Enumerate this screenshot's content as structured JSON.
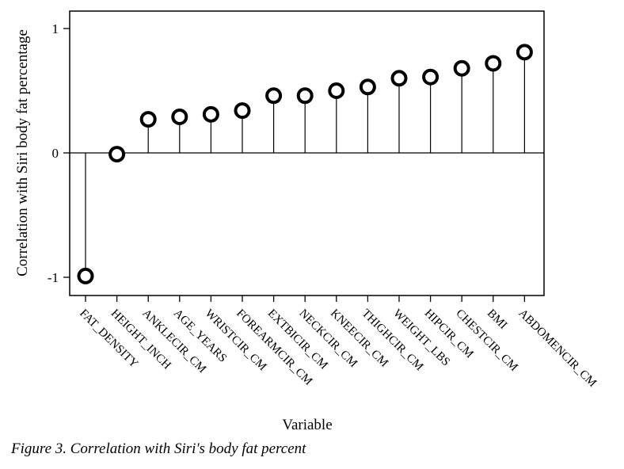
{
  "figure_caption": "Figure 3. Correlation with Siri's body fat percent",
  "chart_data": {
    "type": "scatter",
    "style": "lollipop",
    "xlabel": "Variable",
    "ylabel": "Correlation with Siri body fat percentage",
    "ylim": [
      -1.15,
      1.15
    ],
    "yticks": [
      -1,
      0,
      1
    ],
    "ytick_labels": [
      "-1",
      "0",
      "1"
    ],
    "grid": false,
    "baseline": 0,
    "marker": "open-circle",
    "categories": [
      "FAT_DENSITY",
      "HEIGHT_INCH",
      "ANKLECIR_CM",
      "AGE_YEARS",
      "WRISTCIR_CM",
      "FOREARMCIR_CM",
      "EXTBICIR_CM",
      "NECKCIR_CM",
      "KNEECIR_CM",
      "THIGHCIR_CM",
      "WEIGHT_LBS",
      "HIPCIR_CM",
      "CHESTCIR_CM",
      "BMI",
      "ABDOMENCIR_CM"
    ],
    "values": [
      -0.99,
      -0.01,
      0.27,
      0.29,
      0.31,
      0.34,
      0.46,
      0.46,
      0.5,
      0.53,
      0.6,
      0.61,
      0.68,
      0.72,
      0.81
    ]
  }
}
